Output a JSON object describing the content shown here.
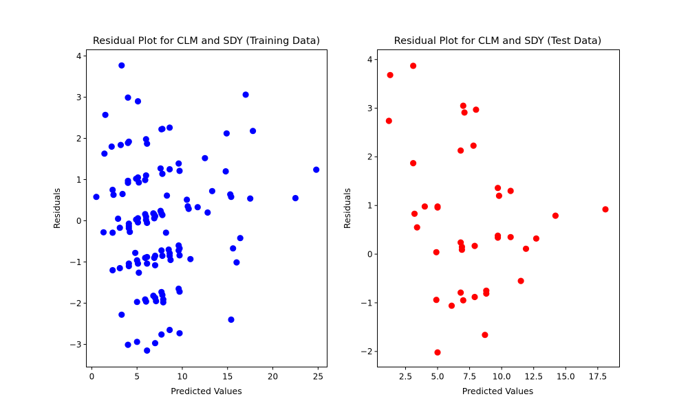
{
  "chart_data": [
    {
      "type": "scatter",
      "title": "Residual Plot for CLM and SDY (Training Data)",
      "xlabel": "Predicted Values",
      "ylabel": "Residuals",
      "xlim": [
        -0.6,
        26.0
      ],
      "ylim": [
        -3.55,
        4.15
      ],
      "xticks": [
        0,
        5,
        10,
        15,
        20,
        25
      ],
      "xtick_labels": [
        "0",
        "5",
        "10",
        "15",
        "20",
        "25"
      ],
      "yticks": [
        -3,
        -2,
        -1,
        0,
        1,
        2,
        3,
        4
      ],
      "ytick_labels": [
        "−3",
        "−2",
        "−1",
        "0",
        "1",
        "2",
        "3",
        "4"
      ],
      "grid": false,
      "color": "#0000ff",
      "points": [
        [
          0.5,
          0.58
        ],
        [
          1.3,
          -0.28
        ],
        [
          1.4,
          1.63
        ],
        [
          1.5,
          2.57
        ],
        [
          2.2,
          1.8
        ],
        [
          2.3,
          -1.2
        ],
        [
          2.3,
          -0.29
        ],
        [
          2.3,
          0.75
        ],
        [
          2.4,
          0.63
        ],
        [
          2.9,
          0.05
        ],
        [
          3.1,
          -0.17
        ],
        [
          3.1,
          -1.15
        ],
        [
          3.2,
          1.84
        ],
        [
          3.3,
          3.77
        ],
        [
          3.3,
          -2.28
        ],
        [
          3.4,
          0.65
        ],
        [
          4.0,
          2.99
        ],
        [
          4.0,
          1.89
        ],
        [
          4.1,
          1.92
        ],
        [
          4.0,
          0.97
        ],
        [
          4.0,
          0.92
        ],
        [
          4.1,
          -0.07
        ],
        [
          4.1,
          -0.13
        ],
        [
          4.1,
          -0.18
        ],
        [
          4.2,
          -0.27
        ],
        [
          4.1,
          -1.04
        ],
        [
          4.1,
          -1.1
        ],
        [
          4.0,
          -3.01
        ],
        [
          4.8,
          -0.78
        ],
        [
          4.9,
          0.03
        ],
        [
          4.9,
          1.02
        ],
        [
          5.0,
          -0.96
        ],
        [
          5.1,
          -1.04
        ],
        [
          5.0,
          -1.97
        ],
        [
          5.0,
          -2.94
        ],
        [
          5.1,
          2.9
        ],
        [
          5.1,
          1.05
        ],
        [
          5.2,
          0.93
        ],
        [
          5.1,
          0.06
        ],
        [
          5.1,
          -0.04
        ],
        [
          5.2,
          -1.26
        ],
        [
          5.9,
          0.99
        ],
        [
          6.0,
          1.1
        ],
        [
          6.0,
          1.98
        ],
        [
          6.1,
          1.87
        ],
        [
          5.9,
          0.16
        ],
        [
          6.0,
          0.1
        ],
        [
          6.0,
          0.02
        ],
        [
          6.1,
          -0.05
        ],
        [
          5.9,
          -0.9
        ],
        [
          6.1,
          -0.88
        ],
        [
          6.1,
          -1.04
        ],
        [
          5.9,
          -1.91
        ],
        [
          6.0,
          -1.96
        ],
        [
          6.1,
          -3.15
        ],
        [
          6.8,
          0.18
        ],
        [
          6.9,
          0.15
        ],
        [
          6.9,
          0.06
        ],
        [
          7.0,
          0.11
        ],
        [
          7.0,
          -0.85
        ],
        [
          6.9,
          -0.9
        ],
        [
          7.0,
          -1.08
        ],
        [
          6.8,
          -1.82
        ],
        [
          7.0,
          -1.87
        ],
        [
          7.1,
          -1.95
        ],
        [
          7.0,
          -2.97
        ],
        [
          7.6,
          0.24
        ],
        [
          7.7,
          0.18
        ],
        [
          7.8,
          0.14
        ],
        [
          7.6,
          1.27
        ],
        [
          7.8,
          1.14
        ],
        [
          7.7,
          2.22
        ],
        [
          7.8,
          2.23
        ],
        [
          7.7,
          -0.72
        ],
        [
          7.8,
          -0.85
        ],
        [
          7.7,
          -1.73
        ],
        [
          7.8,
          -1.8
        ],
        [
          7.9,
          -1.91
        ],
        [
          7.9,
          -1.98
        ],
        [
          7.7,
          -2.76
        ],
        [
          8.2,
          -0.29
        ],
        [
          8.3,
          0.61
        ],
        [
          8.5,
          -0.7
        ],
        [
          8.6,
          -0.79
        ],
        [
          8.6,
          -0.85
        ],
        [
          8.7,
          -0.95
        ],
        [
          8.6,
          1.25
        ],
        [
          8.6,
          2.26
        ],
        [
          8.6,
          -2.65
        ],
        [
          9.6,
          1.39
        ],
        [
          9.7,
          1.21
        ],
        [
          9.6,
          -0.6
        ],
        [
          9.7,
          -0.67
        ],
        [
          9.6,
          -0.72
        ],
        [
          9.7,
          -0.84
        ],
        [
          9.6,
          -1.65
        ],
        [
          9.7,
          -1.72
        ],
        [
          9.7,
          -2.73
        ],
        [
          10.5,
          0.51
        ],
        [
          10.6,
          0.35
        ],
        [
          10.7,
          0.29
        ],
        [
          10.9,
          -0.93
        ],
        [
          11.7,
          0.33
        ],
        [
          12.5,
          1.52
        ],
        [
          12.8,
          0.2
        ],
        [
          13.3,
          0.72
        ],
        [
          14.8,
          1.2
        ],
        [
          14.9,
          2.12
        ],
        [
          15.3,
          0.64
        ],
        [
          15.4,
          0.58
        ],
        [
          15.4,
          -2.4
        ],
        [
          15.6,
          -0.67
        ],
        [
          16.0,
          -1.01
        ],
        [
          16.4,
          -0.42
        ],
        [
          17.0,
          3.06
        ],
        [
          17.5,
          0.54
        ],
        [
          17.8,
          2.18
        ],
        [
          22.5,
          0.55
        ],
        [
          24.8,
          1.24
        ]
      ]
    },
    {
      "type": "scatter",
      "title": "Residual Plot for CLM and SDY (Test Data)",
      "xlabel": "Predicted Values",
      "ylabel": "Residuals",
      "xlim": [
        0.3,
        19.2
      ],
      "ylim": [
        -2.32,
        4.2
      ],
      "xticks": [
        2.5,
        5.0,
        7.5,
        10.0,
        12.5,
        15.0,
        17.5
      ],
      "xtick_labels": [
        "2.5",
        "5.0",
        "7.5",
        "10.0",
        "12.5",
        "15.0",
        "17.5"
      ],
      "yticks": [
        -2,
        -1,
        0,
        1,
        2,
        3,
        4
      ],
      "ytick_labels": [
        "−2",
        "−1",
        "0",
        "1",
        "2",
        "3",
        "4"
      ],
      "grid": false,
      "color": "#ff0000",
      "points": [
        [
          1.2,
          2.74
        ],
        [
          1.3,
          3.68
        ],
        [
          3.1,
          3.87
        ],
        [
          3.1,
          1.87
        ],
        [
          3.2,
          0.83
        ],
        [
          3.4,
          0.55
        ],
        [
          4.0,
          0.98
        ],
        [
          4.9,
          0.04
        ],
        [
          4.9,
          -0.94
        ],
        [
          5.0,
          0.98
        ],
        [
          5.0,
          0.96
        ],
        [
          5.0,
          -2.02
        ],
        [
          6.1,
          -1.06
        ],
        [
          6.8,
          0.24
        ],
        [
          6.8,
          -0.79
        ],
        [
          6.9,
          0.15
        ],
        [
          6.9,
          0.09
        ],
        [
          6.8,
          2.13
        ],
        [
          7.0,
          3.05
        ],
        [
          7.0,
          -0.95
        ],
        [
          7.1,
          2.91
        ],
        [
          7.8,
          2.23
        ],
        [
          7.9,
          0.17
        ],
        [
          7.9,
          -0.88
        ],
        [
          8.0,
          2.97
        ],
        [
          8.7,
          -1.66
        ],
        [
          8.8,
          -0.75
        ],
        [
          8.8,
          -0.81
        ],
        [
          9.7,
          1.36
        ],
        [
          9.7,
          0.38
        ],
        [
          9.7,
          0.34
        ],
        [
          9.8,
          1.2
        ],
        [
          10.7,
          0.35
        ],
        [
          10.7,
          1.3
        ],
        [
          11.5,
          -0.55
        ],
        [
          11.9,
          0.11
        ],
        [
          12.7,
          0.32
        ],
        [
          14.2,
          0.79
        ],
        [
          18.1,
          0.92
        ]
      ]
    }
  ]
}
